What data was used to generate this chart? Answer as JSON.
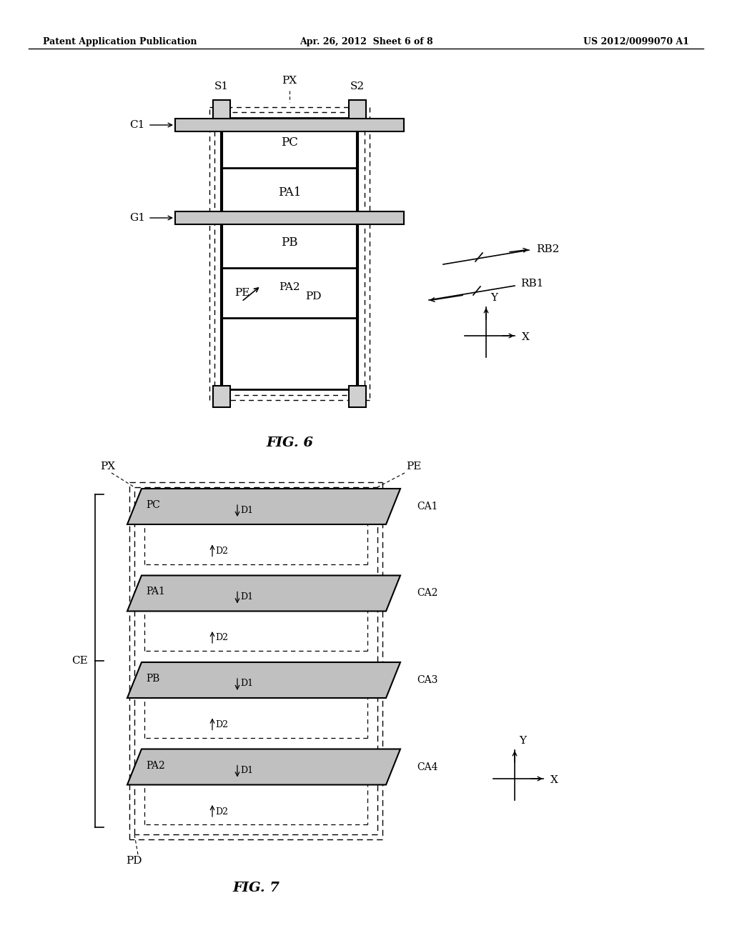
{
  "bg_color": "#ffffff",
  "header_left": "Patent Application Publication",
  "header_mid": "Apr. 26, 2012  Sheet 6 of 8",
  "header_right": "US 2012/0099070 A1",
  "fig6_title": "FIG. 6",
  "fig7_title": "FIG. 7"
}
